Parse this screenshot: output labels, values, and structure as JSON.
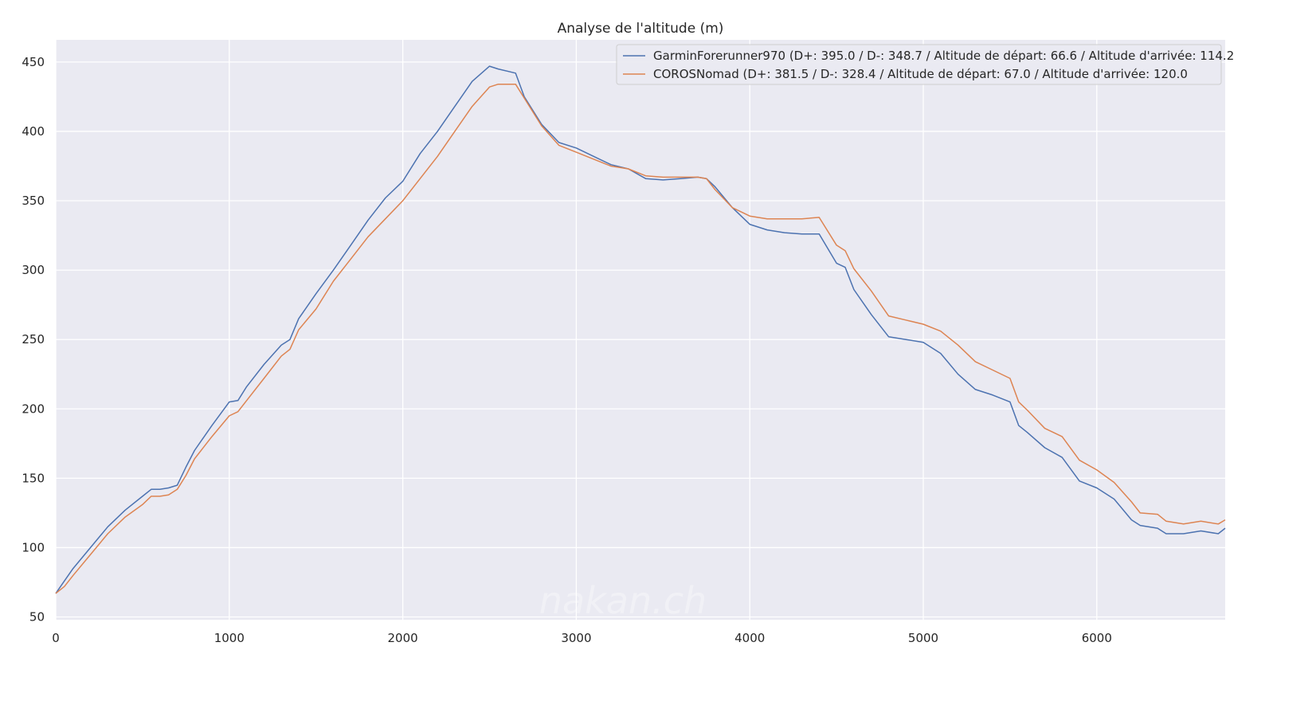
{
  "chart_data": {
    "type": "line",
    "title": "Analyse de l'altitude (m)",
    "xlabel": "",
    "ylabel": "",
    "xlim": [
      0,
      6740
    ],
    "ylim": [
      48,
      466
    ],
    "xticks": [
      0,
      1000,
      2000,
      3000,
      4000,
      5000,
      6000
    ],
    "yticks": [
      50,
      100,
      150,
      200,
      250,
      300,
      350,
      400,
      450
    ],
    "grid": true,
    "legend_position": "top-right",
    "watermark": "nakan.ch",
    "series": [
      {
        "name": "GarminForerunner970 (D+: 395.0 / D-: 348.7 / Altitude de départ: 66.6 / Altitude d'arrivée: 114.2",
        "color": "#4c72b0",
        "x": [
          0,
          50,
          100,
          200,
          300,
          400,
          500,
          550,
          600,
          650,
          700,
          750,
          800,
          900,
          1000,
          1050,
          1100,
          1200,
          1300,
          1350,
          1400,
          1500,
          1600,
          1700,
          1800,
          1900,
          2000,
          2100,
          2200,
          2300,
          2400,
          2500,
          2550,
          2650,
          2700,
          2800,
          2900,
          3000,
          3100,
          3200,
          3300,
          3400,
          3500,
          3600,
          3700,
          3750,
          3800,
          3900,
          4000,
          4100,
          4200,
          4300,
          4400,
          4500,
          4550,
          4600,
          4700,
          4800,
          4900,
          5000,
          5100,
          5200,
          5300,
          5400,
          5500,
          5550,
          5600,
          5700,
          5800,
          5900,
          6000,
          6100,
          6200,
          6250,
          6350,
          6400,
          6500,
          6600,
          6700,
          6740
        ],
        "y": [
          67,
          76,
          85,
          100,
          115,
          127,
          137,
          142,
          142,
          143,
          145,
          158,
          170,
          188,
          205,
          206,
          216,
          232,
          246,
          250,
          265,
          283,
          300,
          318,
          336,
          352,
          364,
          384,
          400,
          418,
          436,
          447,
          445,
          442,
          425,
          405,
          392,
          388,
          382,
          376,
          373,
          366,
          365,
          366,
          367,
          366,
          360,
          345,
          333,
          329,
          327,
          326,
          326,
          305,
          302,
          286,
          268,
          252,
          250,
          248,
          240,
          225,
          214,
          210,
          205,
          188,
          183,
          172,
          165,
          148,
          143,
          135,
          120,
          116,
          114,
          110,
          110,
          112,
          110,
          114
        ]
      },
      {
        "name": "COROSNomad (D+: 381.5 / D-: 328.4 / Altitude de départ: 67.0 / Altitude d'arrivée: 120.0",
        "color": "#dd8452",
        "x": [
          0,
          50,
          100,
          200,
          300,
          400,
          500,
          550,
          600,
          650,
          700,
          750,
          800,
          900,
          1000,
          1050,
          1100,
          1200,
          1300,
          1350,
          1400,
          1500,
          1600,
          1700,
          1800,
          1900,
          2000,
          2100,
          2200,
          2300,
          2400,
          2500,
          2550,
          2650,
          2700,
          2800,
          2900,
          3000,
          3100,
          3200,
          3300,
          3400,
          3500,
          3600,
          3700,
          3750,
          3800,
          3900,
          4000,
          4100,
          4200,
          4300,
          4400,
          4500,
          4550,
          4600,
          4700,
          4800,
          4900,
          5000,
          5100,
          5200,
          5300,
          5400,
          5500,
          5550,
          5600,
          5700,
          5800,
          5900,
          6000,
          6100,
          6200,
          6250,
          6350,
          6400,
          6500,
          6600,
          6700,
          6740
        ],
        "y": [
          67,
          72,
          80,
          95,
          110,
          122,
          131,
          137,
          137,
          138,
          142,
          152,
          164,
          180,
          195,
          198,
          206,
          222,
          238,
          243,
          257,
          272,
          292,
          308,
          324,
          337,
          350,
          366,
          382,
          400,
          418,
          432,
          434,
          434,
          424,
          404,
          390,
          385,
          380,
          375,
          373,
          368,
          367,
          367,
          367,
          366,
          358,
          345,
          339,
          337,
          337,
          337,
          338,
          318,
          314,
          301,
          285,
          267,
          264,
          261,
          256,
          246,
          234,
          228,
          222,
          205,
          199,
          186,
          180,
          163,
          156,
          147,
          133,
          125,
          124,
          119,
          117,
          119,
          117,
          120
        ]
      }
    ]
  }
}
